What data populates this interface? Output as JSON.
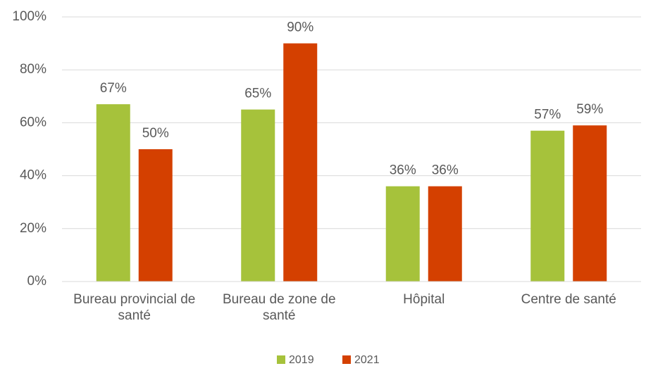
{
  "chart_data": {
    "type": "bar",
    "categories": [
      "Bureau provincial de santé",
      "Bureau de zone de santé",
      "Hôpital",
      "Centre de santé"
    ],
    "series": [
      {
        "name": "2019",
        "color": "#a6c23b",
        "values": [
          67,
          65,
          36,
          57
        ],
        "value_labels": [
          "67%",
          "65%",
          "36%",
          "57%"
        ]
      },
      {
        "name": "2021",
        "color": "#d44000",
        "values": [
          50,
          90,
          36,
          59
        ],
        "value_labels": [
          "50%",
          "90%",
          "36%",
          "59%"
        ]
      }
    ],
    "ylim": [
      0,
      100
    ],
    "yticks": [
      {
        "value": 0,
        "label": "0%"
      },
      {
        "value": 20,
        "label": "20%"
      },
      {
        "value": 40,
        "label": "40%"
      },
      {
        "value": 60,
        "label": "60%"
      },
      {
        "value": 80,
        "label": "80%"
      },
      {
        "value": 100,
        "label": "100%"
      }
    ],
    "grid": true,
    "legend": "bottom"
  }
}
